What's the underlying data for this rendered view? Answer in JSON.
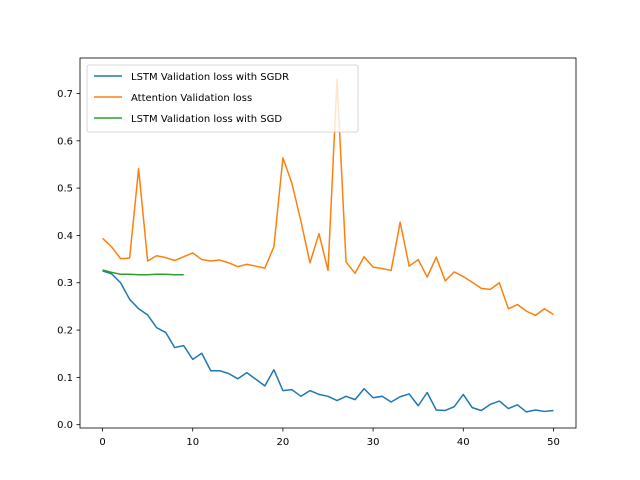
{
  "chart_data": {
    "type": "line",
    "title": "",
    "xlabel": "",
    "ylabel": "",
    "xlim": [
      -2.5,
      52.5
    ],
    "ylim": [
      -0.007,
      0.775
    ],
    "xticks": [
      0,
      10,
      20,
      30,
      40,
      50
    ],
    "yticks": [
      0.0,
      0.1,
      0.2,
      0.3,
      0.4,
      0.5,
      0.6,
      0.7
    ],
    "ytick_labels": [
      "0.0",
      "0.1",
      "0.2",
      "0.3",
      "0.4",
      "0.5",
      "0.6",
      "0.7"
    ],
    "grid": false,
    "legend_position": "top-left",
    "series": [
      {
        "name": "LSTM Validation loss with SGDR",
        "color": "#1f77b4",
        "x": [
          0,
          1,
          2,
          3,
          4,
          5,
          6,
          7,
          8,
          9,
          10,
          11,
          12,
          13,
          14,
          15,
          16,
          17,
          18,
          19,
          20,
          21,
          22,
          23,
          24,
          25,
          26,
          27,
          28,
          29,
          30,
          31,
          32,
          33,
          34,
          35,
          36,
          37,
          38,
          39,
          40,
          41,
          42,
          43,
          44,
          45,
          46,
          47,
          48,
          49,
          50
        ],
        "y": [
          0.325,
          0.319,
          0.3,
          0.265,
          0.245,
          0.232,
          0.205,
          0.195,
          0.163,
          0.167,
          0.138,
          0.151,
          0.114,
          0.114,
          0.108,
          0.097,
          0.11,
          0.096,
          0.082,
          0.116,
          0.072,
          0.074,
          0.06,
          0.072,
          0.064,
          0.06,
          0.051,
          0.06,
          0.053,
          0.076,
          0.057,
          0.06,
          0.048,
          0.059,
          0.065,
          0.04,
          0.068,
          0.031,
          0.03,
          0.038,
          0.064,
          0.036,
          0.03,
          0.043,
          0.05,
          0.034,
          0.042,
          0.027,
          0.031,
          0.028,
          0.03
        ]
      },
      {
        "name": "Attention Validation loss",
        "color": "#ff7f0e",
        "x": [
          0,
          1,
          2,
          3,
          4,
          5,
          6,
          7,
          8,
          9,
          10,
          11,
          12,
          13,
          14,
          15,
          16,
          17,
          18,
          19,
          20,
          21,
          22,
          23,
          24,
          25,
          26,
          27,
          28,
          29,
          30,
          31,
          32,
          33,
          34,
          35,
          36,
          37,
          38,
          39,
          40,
          41,
          42,
          43,
          44,
          45,
          46,
          47,
          48,
          49,
          50
        ],
        "y": [
          0.394,
          0.376,
          0.351,
          0.352,
          0.541,
          0.346,
          0.357,
          0.353,
          0.347,
          0.355,
          0.363,
          0.349,
          0.346,
          0.348,
          0.342,
          0.334,
          0.339,
          0.335,
          0.331,
          0.376,
          0.564,
          0.51,
          0.43,
          0.342,
          0.404,
          0.326,
          0.73,
          0.344,
          0.32,
          0.355,
          0.333,
          0.33,
          0.326,
          0.428,
          0.335,
          0.349,
          0.312,
          0.354,
          0.304,
          0.323,
          0.313,
          0.301,
          0.288,
          0.286,
          0.3,
          0.245,
          0.254,
          0.24,
          0.231,
          0.245,
          0.233
        ]
      },
      {
        "name": "LSTM Validation loss with SGD",
        "color": "#2ca02c",
        "x": [
          0,
          1,
          2,
          3,
          4,
          5,
          6,
          7,
          8,
          9
        ],
        "y": [
          0.327,
          0.322,
          0.318,
          0.318,
          0.317,
          0.317,
          0.318,
          0.318,
          0.317,
          0.317
        ]
      }
    ]
  }
}
